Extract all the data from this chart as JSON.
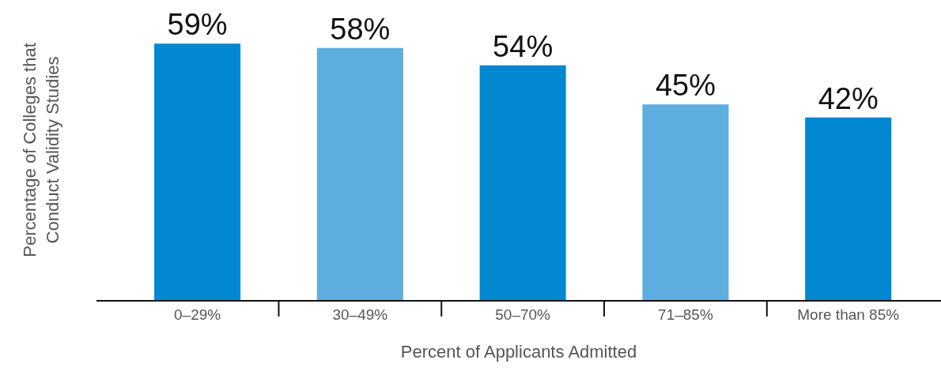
{
  "chart_data": {
    "type": "bar",
    "xlabel": "Percent of Applicants Admitted",
    "ylabel": "Percentage of Colleges that\nConduct Validity Studies",
    "categories": [
      "0–29%",
      "30–49%",
      "50–70%",
      "71–85%",
      "More than 85%"
    ],
    "values": [
      59,
      58,
      54,
      45,
      42
    ],
    "value_labels": [
      "59%",
      "58%",
      "54%",
      "45%",
      "42%"
    ],
    "colors": [
      "#0288d1",
      "#5eaddf",
      "#0288d1",
      "#5eaddf",
      "#0288d1"
    ]
  }
}
